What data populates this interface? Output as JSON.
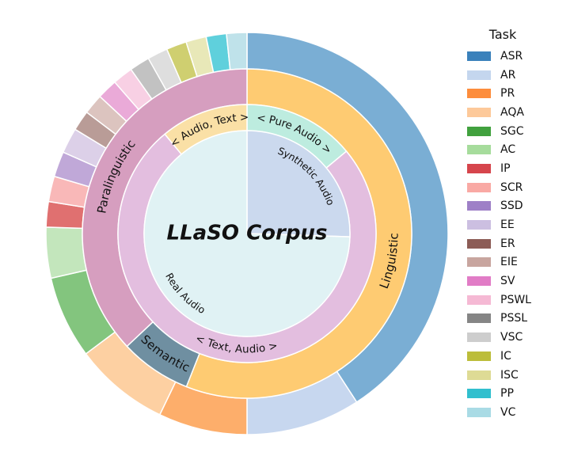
{
  "chart_data": {
    "type": "pie",
    "title": "LLaSO Corpus",
    "rings": {
      "outer": {
        "slices": [
          {
            "label": "ASR",
            "value": 40.0,
            "color": "#7aaed4"
          },
          {
            "label": "AR",
            "value": 9.0,
            "color": "#c7d7ef"
          },
          {
            "label": "PR",
            "value": 7.0,
            "color": "#fdae6b"
          },
          {
            "label": "AQA",
            "value": 7.5,
            "color": "#fdd0a2"
          },
          {
            "label": "SGC",
            "value": 6.5,
            "color": "#83c57e"
          },
          {
            "label": "AC",
            "value": 4.0,
            "color": "#c3e6bc"
          },
          {
            "label": "IP",
            "value": 2.0,
            "color": "#e07070"
          },
          {
            "label": "SCR",
            "value": 2.0,
            "color": "#f9b8b8"
          },
          {
            "label": "SSD",
            "value": 2.0,
            "color": "#c0a8d8"
          },
          {
            "label": "EE",
            "value": 2.0,
            "color": "#dcd0e8"
          },
          {
            "label": "ER",
            "value": 1.6,
            "color": "#b99c97"
          },
          {
            "label": "EIE",
            "value": 1.6,
            "color": "#dcc4bf"
          },
          {
            "label": "SV",
            "value": 1.6,
            "color": "#eaaad8"
          },
          {
            "label": "PSWL",
            "value": 1.6,
            "color": "#f8d0e4"
          },
          {
            "label": "PSSL",
            "value": 1.6,
            "color": "#c2c2c2"
          },
          {
            "label": "VSC",
            "value": 1.6,
            "color": "#dedede"
          },
          {
            "label": "IC",
            "value": 1.6,
            "color": "#cfcf70"
          },
          {
            "label": "ISC",
            "value": 1.6,
            "color": "#e8e8b8"
          },
          {
            "label": "PP",
            "value": 1.6,
            "color": "#5fd0dc"
          },
          {
            "label": "VC",
            "value": 1.6,
            "color": "#bfe2ea"
          }
        ]
      },
      "middle": {
        "slices": [
          {
            "label": "Linguistic",
            "value": 56.0,
            "color": "#fecb72"
          },
          {
            "label": "Semantic",
            "value": 7.0,
            "color": "#6f8fa1"
          },
          {
            "label": "Paralinguistic",
            "value": 37.0,
            "color": "#d69ebf"
          }
        ]
      },
      "inner": {
        "slices": [
          {
            "label": "< Pure Audio >",
            "value": 14.0,
            "color": "#bdecdf"
          },
          {
            "label": "< Text, Audio >",
            "value": 75.0,
            "color": "#e3bedf"
          },
          {
            "label": "< Audio, Text >",
            "value": 11.0,
            "color": "#fae0a6"
          }
        ]
      },
      "core": {
        "slices": [
          {
            "label": "Synthetic Audio",
            "value": 25.5,
            "color": "#cbd9ee"
          },
          {
            "label": "Real Audio",
            "value": 74.5,
            "color": "#e0f2f4"
          }
        ]
      }
    },
    "legend": {
      "title": "Task",
      "placement": "right",
      "entries": [
        {
          "label": "ASR",
          "color": "#3a81bb"
        },
        {
          "label": "AR",
          "color": "#c4d6ee"
        },
        {
          "label": "PR",
          "color": "#fd8d3c"
        },
        {
          "label": "AQA",
          "color": "#fdc99a"
        },
        {
          "label": "SGC",
          "color": "#41a13e"
        },
        {
          "label": "AC",
          "color": "#a6dc9c"
        },
        {
          "label": "IP",
          "color": "#d6454c"
        },
        {
          "label": "SCR",
          "color": "#f9a9a4"
        },
        {
          "label": "SSD",
          "color": "#9e80c7"
        },
        {
          "label": "EE",
          "color": "#ccbfe1"
        },
        {
          "label": "ER",
          "color": "#8c5c56"
        },
        {
          "label": "EIE",
          "color": "#c8a59f"
        },
        {
          "label": "SV",
          "color": "#e17cc6"
        },
        {
          "label": "PSWL",
          "color": "#f5b9d4"
        },
        {
          "label": "PSSL",
          "color": "#858585"
        },
        {
          "label": "VSC",
          "color": "#cdcdcd"
        },
        {
          "label": "IC",
          "color": "#bcbd3a"
        },
        {
          "label": "ISC",
          "color": "#dedb95"
        },
        {
          "label": "PP",
          "color": "#31bfce"
        },
        {
          "label": "VC",
          "color": "#a9dbe5"
        }
      ]
    }
  }
}
